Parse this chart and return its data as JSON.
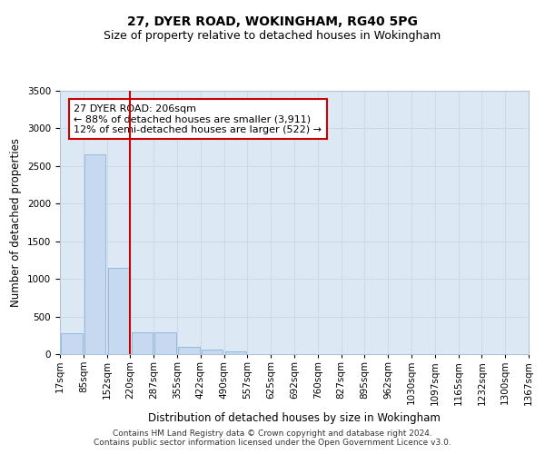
{
  "title": "27, DYER ROAD, WOKINGHAM, RG40 5PG",
  "subtitle": "Size of property relative to detached houses in Wokingham",
  "xlabel": "Distribution of detached houses by size in Wokingham",
  "ylabel": "Number of detached properties",
  "bar_values": [
    280,
    2650,
    1150,
    285,
    285,
    95,
    65,
    40,
    0,
    0,
    0,
    0,
    0,
    0,
    0,
    0,
    0,
    0,
    0,
    0
  ],
  "bar_labels": [
    "17sqm",
    "85sqm",
    "152sqm",
    "220sqm",
    "287sqm",
    "355sqm",
    "422sqm",
    "490sqm",
    "557sqm",
    "625sqm",
    "692sqm",
    "760sqm",
    "827sqm",
    "895sqm",
    "962sqm",
    "1030sqm",
    "1097sqm",
    "1165sqm",
    "1232sqm",
    "1300sqm",
    "1367sqm"
  ],
  "bar_color": "#c6d9f1",
  "bar_edge_color": "#8ab4d8",
  "vline_color": "#cc0000",
  "annotation_text": "27 DYER ROAD: 206sqm\n← 88% of detached houses are smaller (3,911)\n12% of semi-detached houses are larger (522) →",
  "annotation_box_color": "#ffffff",
  "annotation_box_edge": "#cc0000",
  "ylim": [
    0,
    3500
  ],
  "yticks": [
    0,
    500,
    1000,
    1500,
    2000,
    2500,
    3000,
    3500
  ],
  "grid_color": "#d0d8e8",
  "background_color": "#dde8f5",
  "footer_text": "Contains HM Land Registry data © Crown copyright and database right 2024.\nContains public sector information licensed under the Open Government Licence v3.0.",
  "title_fontsize": 10,
  "subtitle_fontsize": 9,
  "axis_label_fontsize": 8.5,
  "tick_fontsize": 7.5,
  "annotation_fontsize": 8
}
